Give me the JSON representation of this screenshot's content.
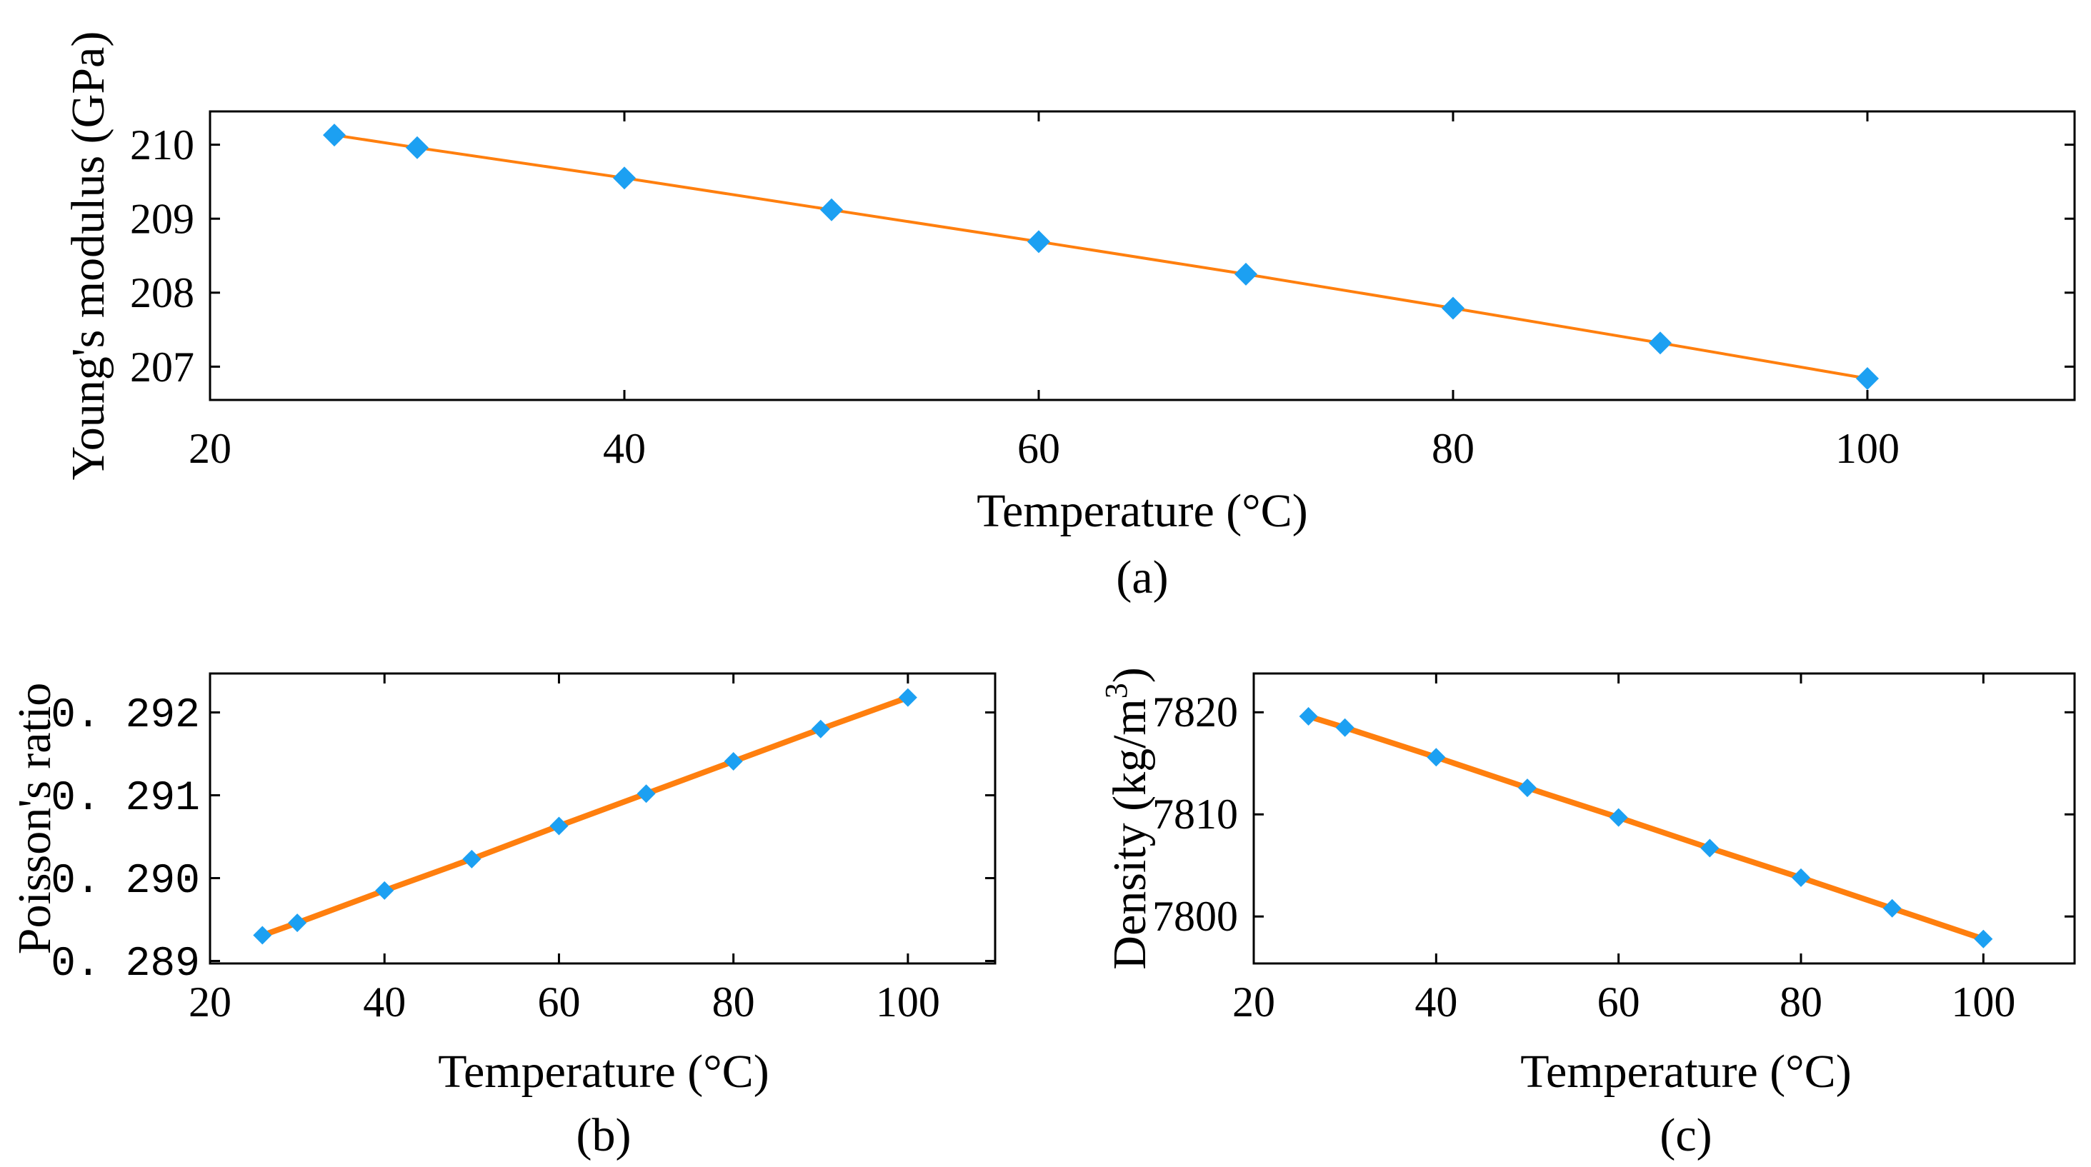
{
  "chart_data": [
    {
      "id": "a",
      "type": "line",
      "caption": "(a)",
      "xlabel": "Temperature (°C)",
      "ylabel": "Young's modulus (GPa)",
      "xlim": [
        20,
        110
      ],
      "ylim": [
        206.55,
        210.45
      ],
      "xticks": [
        20,
        40,
        60,
        80,
        100
      ],
      "yticks": [
        207,
        208,
        209,
        210
      ],
      "xtick_labels": [
        "20",
        "40",
        "60",
        "80",
        "100"
      ],
      "ytick_labels": [
        "207",
        "208",
        "209",
        "210"
      ],
      "x": [
        26,
        30,
        40,
        50,
        60,
        70,
        80,
        90,
        100
      ],
      "y": [
        210.13,
        209.96,
        209.55,
        209.12,
        208.69,
        208.25,
        207.79,
        207.32,
        206.84
      ],
      "line_color": "#ff7f0e",
      "marker_color": "#1ca0f2",
      "marker": "diamond"
    },
    {
      "id": "b",
      "type": "line",
      "caption": "(b)",
      "xlabel": "Temperature (°C)",
      "ylabel": "Poisson's ratio",
      "xlim": [
        20,
        110
      ],
      "ylim": [
        0.28897,
        0.29247
      ],
      "xticks": [
        20,
        40,
        60,
        80,
        100
      ],
      "yticks": [
        0.289,
        0.29,
        0.291,
        0.292
      ],
      "xtick_labels": [
        "20",
        "40",
        "60",
        "80",
        "100"
      ],
      "ytick_labels": [
        "0. 289",
        "0. 290",
        "0. 291",
        "0. 292"
      ],
      "x": [
        26,
        30,
        40,
        50,
        60,
        70,
        80,
        90,
        100
      ],
      "y": [
        0.28931,
        0.28946,
        0.28985,
        0.29023,
        0.29063,
        0.29102,
        0.29141,
        0.2918,
        0.29218
      ],
      "line_color": "#ff7f0e",
      "marker_color": "#1ca0f2",
      "marker": "diamond"
    },
    {
      "id": "c",
      "type": "line",
      "caption": "(c)",
      "xlabel": "Temperature (°C)",
      "ylabel": "Density (kg/m",
      "ylabel_sup": "3",
      "ylabel_end": ")",
      "xlim": [
        20,
        110
      ],
      "ylim": [
        7795.4,
        7823.8
      ],
      "xticks": [
        20,
        40,
        60,
        80,
        100
      ],
      "yticks": [
        7800,
        7810,
        7820
      ],
      "xtick_labels": [
        "20",
        "40",
        "60",
        "80",
        "100"
      ],
      "ytick_labels": [
        "7800",
        "7810",
        "7820"
      ],
      "x": [
        26,
        30,
        40,
        50,
        60,
        70,
        80,
        90,
        100
      ],
      "y": [
        7819.6,
        7818.5,
        7815.6,
        7812.6,
        7809.7,
        7806.7,
        7803.8,
        7800.8,
        7797.8
      ],
      "line_color": "#ff7f0e",
      "marker_color": "#1ca0f2",
      "marker": "diamond"
    }
  ]
}
